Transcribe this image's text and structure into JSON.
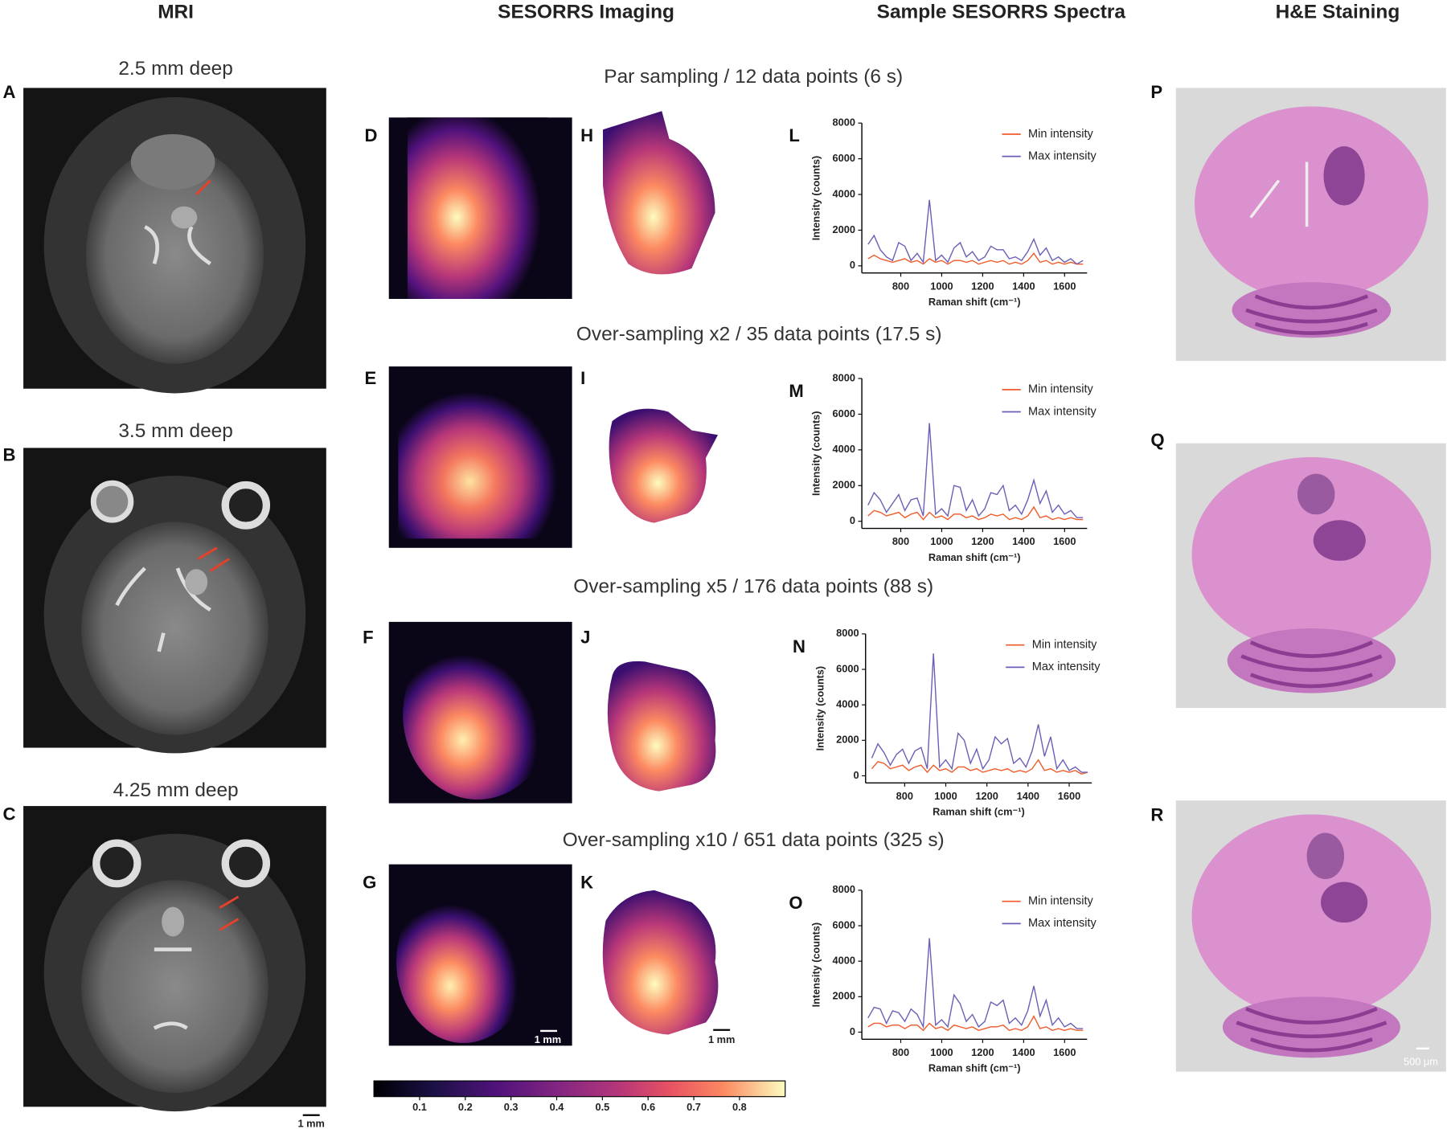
{
  "columns": [
    "MRI",
    "SESORRS Imaging",
    "Sample SESORRS Spectra",
    "H&E Staining"
  ],
  "mri": [
    {
      "letter": "A",
      "depth": "2.5 mm deep"
    },
    {
      "letter": "B",
      "depth": "3.5 mm deep"
    },
    {
      "letter": "C",
      "depth": "4.25 mm deep"
    }
  ],
  "mri_scale": "1 mm",
  "rows": [
    {
      "title": "Par sampling / 12 data points (6 s)",
      "map_letter": "D",
      "mask_letter": "H"
    },
    {
      "title": "Over-sampling x2 / 35 data points (17.5 s)",
      "map_letter": "E",
      "mask_letter": "I"
    },
    {
      "title": "Over-sampling x5 / 176 data points (88 s)",
      "map_letter": "F",
      "mask_letter": "J"
    },
    {
      "title": "Over-sampling x10 / 651 data points (325 s)",
      "map_letter": "G",
      "mask_letter": "K"
    }
  ],
  "map_scale": "1 mm",
  "colorbar": {
    "lim": [
      0,
      0.9
    ],
    "ticks": [
      0.1,
      0.2,
      0.3,
      0.4,
      0.5,
      0.6,
      0.7,
      0.8
    ]
  },
  "he": [
    {
      "letter": "P"
    },
    {
      "letter": "Q"
    },
    {
      "letter": "R"
    }
  ],
  "he_scale": "500 μm",
  "chart_data": [
    {
      "type": "line",
      "letter": "L",
      "x_label": "Raman shift (cm⁻¹)",
      "y_label": "Intensity (counts)",
      "x": [
        640,
        670,
        700,
        730,
        760,
        790,
        820,
        850,
        880,
        910,
        940,
        970,
        1000,
        1030,
        1060,
        1090,
        1120,
        1150,
        1180,
        1210,
        1240,
        1270,
        1300,
        1330,
        1360,
        1390,
        1420,
        1450,
        1480,
        1510,
        1540,
        1570,
        1600,
        1630,
        1660,
        1690
      ],
      "series": [
        {
          "name": "Min intensity",
          "color": "#f05a28",
          "values": [
            400,
            600,
            400,
            300,
            200,
            300,
            400,
            200,
            300,
            100,
            400,
            200,
            300,
            100,
            300,
            300,
            200,
            300,
            100,
            200,
            300,
            200,
            300,
            100,
            200,
            100,
            300,
            700,
            200,
            300,
            100,
            200,
            100,
            200,
            100,
            100
          ]
        },
        {
          "name": "Max intensity",
          "color": "#6a5fb5",
          "values": [
            1200,
            1700,
            900,
            500,
            300,
            1300,
            1100,
            300,
            700,
            200,
            3700,
            300,
            600,
            200,
            1000,
            1300,
            500,
            800,
            300,
            500,
            1100,
            900,
            900,
            400,
            500,
            300,
            800,
            1500,
            600,
            1000,
            300,
            500,
            200,
            400,
            100,
            300
          ]
        }
      ],
      "xlim": [
        610,
        1710
      ],
      "ylim": [
        -400,
        8000
      ],
      "xticks": [
        800,
        1000,
        1200,
        1400,
        1600
      ],
      "yticks": [
        0,
        2000,
        4000,
        6000,
        8000
      ]
    },
    {
      "type": "line",
      "letter": "M",
      "x_label": "Raman shift (cm⁻¹)",
      "y_label": "Intensity (counts)",
      "x": [
        640,
        670,
        700,
        730,
        760,
        790,
        820,
        850,
        880,
        910,
        940,
        970,
        1000,
        1030,
        1060,
        1090,
        1120,
        1150,
        1180,
        1210,
        1240,
        1270,
        1300,
        1330,
        1360,
        1390,
        1420,
        1450,
        1480,
        1510,
        1540,
        1570,
        1600,
        1630,
        1660,
        1690
      ],
      "series": [
        {
          "name": "Min intensity",
          "color": "#f05a28",
          "values": [
            300,
            600,
            500,
            300,
            400,
            500,
            200,
            400,
            500,
            100,
            500,
            200,
            300,
            100,
            400,
            400,
            200,
            300,
            100,
            200,
            400,
            300,
            400,
            100,
            200,
            100,
            300,
            800,
            200,
            300,
            100,
            200,
            100,
            200,
            100,
            100
          ]
        },
        {
          "name": "Max intensity",
          "color": "#6a5fb5",
          "values": [
            900,
            1600,
            1200,
            500,
            1000,
            1500,
            600,
            1200,
            1300,
            300,
            5500,
            400,
            700,
            300,
            2000,
            1900,
            600,
            1200,
            300,
            700,
            1600,
            1500,
            2000,
            600,
            900,
            400,
            1200,
            2300,
            1000,
            1700,
            500,
            900,
            400,
            600,
            200,
            200
          ]
        }
      ],
      "xlim": [
        610,
        1710
      ],
      "ylim": [
        -400,
        8000
      ],
      "xticks": [
        800,
        1000,
        1200,
        1400,
        1600
      ],
      "yticks": [
        0,
        2000,
        4000,
        6000,
        8000
      ]
    },
    {
      "type": "line",
      "letter": "N",
      "x_label": "Raman shift (cm⁻¹)",
      "y_label": "Intensity (counts)",
      "x": [
        640,
        670,
        700,
        730,
        760,
        790,
        820,
        850,
        880,
        910,
        940,
        970,
        1000,
        1030,
        1060,
        1090,
        1120,
        1150,
        1180,
        1210,
        1240,
        1270,
        1300,
        1330,
        1360,
        1390,
        1420,
        1450,
        1480,
        1510,
        1540,
        1570,
        1600,
        1630,
        1660,
        1690
      ],
      "series": [
        {
          "name": "Min intensity",
          "color": "#f05a28",
          "values": [
            400,
            800,
            700,
            400,
            500,
            600,
            300,
            500,
            600,
            200,
            600,
            300,
            400,
            200,
            500,
            500,
            300,
            400,
            200,
            300,
            400,
            300,
            400,
            200,
            300,
            200,
            400,
            900,
            300,
            400,
            200,
            300,
            200,
            300,
            100,
            200
          ]
        },
        {
          "name": "Max intensity",
          "color": "#6a5fb5",
          "values": [
            1000,
            1800,
            1300,
            600,
            1200,
            1500,
            700,
            1400,
            1600,
            400,
            6900,
            500,
            900,
            400,
            2400,
            2000,
            700,
            1500,
            400,
            900,
            2200,
            1800,
            2100,
            700,
            1000,
            500,
            1400,
            2900,
            1100,
            2200,
            400,
            900,
            300,
            500,
            200,
            200
          ]
        }
      ],
      "xlim": [
        610,
        1710
      ],
      "ylim": [
        -400,
        8000
      ],
      "xticks": [
        800,
        1000,
        1200,
        1400,
        1600
      ],
      "yticks": [
        0,
        2000,
        4000,
        6000,
        8000
      ]
    },
    {
      "type": "line",
      "letter": "O",
      "x_label": "Raman shift (cm⁻¹)",
      "y_label": "Intensity (counts)",
      "x": [
        640,
        670,
        700,
        730,
        760,
        790,
        820,
        850,
        880,
        910,
        940,
        970,
        1000,
        1030,
        1060,
        1090,
        1120,
        1150,
        1180,
        1210,
        1240,
        1270,
        1300,
        1330,
        1360,
        1390,
        1420,
        1450,
        1480,
        1510,
        1540,
        1570,
        1600,
        1630,
        1660,
        1690
      ],
      "series": [
        {
          "name": "Min intensity",
          "color": "#f05a28",
          "values": [
            300,
            500,
            500,
            300,
            400,
            400,
            200,
            400,
            400,
            100,
            500,
            200,
            300,
            100,
            400,
            300,
            200,
            300,
            100,
            200,
            300,
            300,
            400,
            100,
            200,
            100,
            300,
            900,
            200,
            300,
            100,
            200,
            100,
            200,
            100,
            100
          ]
        },
        {
          "name": "Max intensity",
          "color": "#6a5fb5",
          "values": [
            800,
            1400,
            1300,
            500,
            1200,
            1100,
            600,
            1300,
            1000,
            300,
            5300,
            400,
            700,
            300,
            2100,
            1600,
            600,
            1000,
            300,
            600,
            1700,
            1500,
            1800,
            500,
            800,
            400,
            1200,
            2600,
            900,
            1800,
            400,
            800,
            300,
            500,
            200,
            200
          ]
        }
      ],
      "xlim": [
        610,
        1710
      ],
      "ylim": [
        -400,
        8000
      ],
      "xticks": [
        800,
        1000,
        1200,
        1400,
        1600
      ],
      "yticks": [
        0,
        2000,
        4000,
        6000,
        8000
      ]
    }
  ]
}
